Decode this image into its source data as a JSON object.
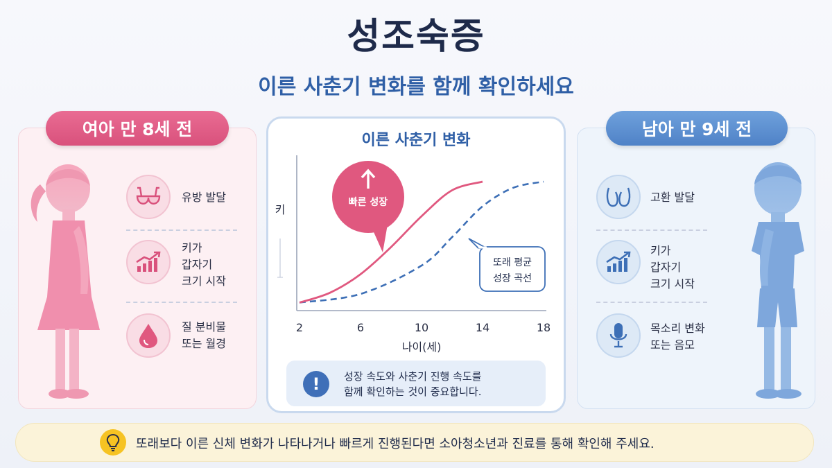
{
  "header": {
    "title": "성조숙증",
    "subtitle": "이른 사춘기 변화를 함께 확인하세요"
  },
  "girl_panel": {
    "label": "여아 만 8세 전",
    "items": [
      {
        "icon": "bra-icon",
        "text": "유방 발달"
      },
      {
        "icon": "growth-chart-icon",
        "text": "키가\n갑자기\n크기 시작"
      },
      {
        "icon": "drop-icon",
        "text": "질 분비물\n또는 월경"
      }
    ]
  },
  "boy_panel": {
    "label": "남아 만 9세 전",
    "items": [
      {
        "icon": "testes-icon",
        "text": "고환 발달"
      },
      {
        "icon": "growth-chart-icon",
        "text": "키가\n갑자기\n크기 시작"
      },
      {
        "icon": "microphone-icon",
        "text": "목소리 변화\n또는 음모"
      }
    ]
  },
  "center": {
    "title": "이른 사춘기 변화",
    "info_text": "성장 속도와 사춘기 진행 속도를\n함께 확인하는 것이 중요합니다.",
    "info_icon": "exclamation-icon"
  },
  "chart_data": {
    "type": "line",
    "ylabel": "키",
    "xlabel": "나이(세)",
    "x_ticks": [
      2,
      6,
      10,
      14,
      18
    ],
    "xlim": [
      2,
      18
    ],
    "series": [
      {
        "name": "빠른 성장",
        "style": "solid",
        "color": "#e0587f",
        "x": [
          2,
          4,
          6,
          8,
          10,
          12,
          14
        ],
        "y": [
          0.02,
          0.1,
          0.25,
          0.47,
          0.72,
          0.93,
          1.0
        ]
      },
      {
        "name": "또래 평균 성장 곡선",
        "style": "dashed",
        "color": "#3d6fb6",
        "x": [
          2,
          6,
          10,
          12,
          14,
          16,
          18
        ],
        "y": [
          0.02,
          0.09,
          0.32,
          0.55,
          0.8,
          0.95,
          1.0
        ]
      }
    ],
    "callouts": {
      "fast": "빠른 성장",
      "average": "또래 평균\n성장 곡선"
    }
  },
  "footer": {
    "text": "또래보다 이른 신체 변화가 나타나거나 빠르게 진행된다면 소아청소년과 진료를 통해 확인해 주세요.",
    "icon": "lightbulb-icon"
  },
  "colors": {
    "girl": "#e0587f",
    "boy": "#4f82c7",
    "title": "#1e2a4a",
    "accent": "#2f5fa6"
  }
}
